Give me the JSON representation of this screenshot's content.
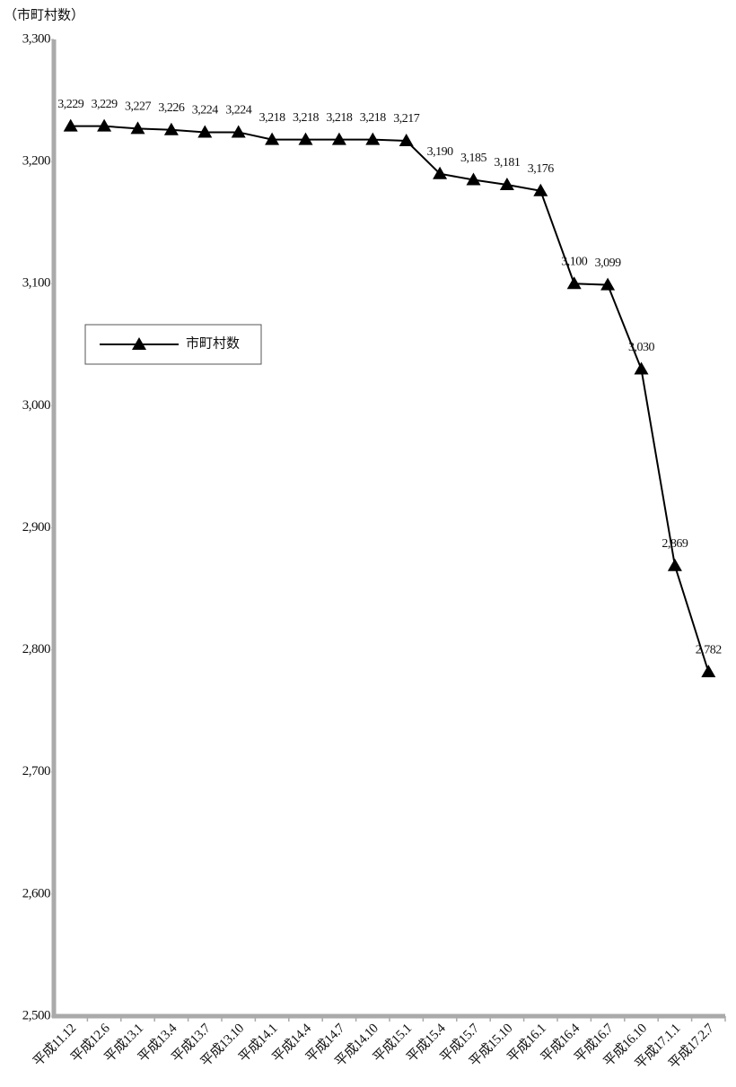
{
  "chart_data": {
    "type": "line",
    "y_label": "（市町村数）",
    "categories": [
      "平成11.12",
      "平成12.6",
      "平成13.1",
      "平成13.4",
      "平成13.7",
      "平成13.10",
      "平成14.1",
      "平成14.4",
      "平成14.7",
      "平成14.10",
      "平成15.1",
      "平成15.4",
      "平成15.7",
      "平成15.10",
      "平成16.1",
      "平成16.4",
      "平成16.7",
      "平成16.10",
      "平成17.1.1",
      "平成17.2.7"
    ],
    "series": [
      {
        "name": "市町村数",
        "color": "#000000",
        "values": [
          3229,
          3229,
          3227,
          3226,
          3224,
          3224,
          3218,
          3218,
          3218,
          3218,
          3217,
          3190,
          3185,
          3181,
          3176,
          3100,
          3099,
          3030,
          2869,
          2782
        ],
        "value_labels": [
          "3,229",
          "3,229",
          "3,227",
          "3,226",
          "3,224",
          "3,224",
          "3,218",
          "3,218",
          "3,218",
          "3,218",
          "3,217",
          "3,190",
          "3,185",
          "3,181",
          "3,176",
          "3,100",
          "3,099",
          "3,030",
          "2,869",
          "2,782"
        ]
      }
    ],
    "ylim": [
      2500,
      3300
    ],
    "yticks": [
      {
        "value": 2500,
        "label": "2,500"
      },
      {
        "value": 2600,
        "label": "2,600"
      },
      {
        "value": 2700,
        "label": "2,700"
      },
      {
        "value": 2800,
        "label": "2,800"
      },
      {
        "value": 2900,
        "label": "2,900"
      },
      {
        "value": 3000,
        "label": "3,000"
      },
      {
        "value": 3100,
        "label": "3,100"
      },
      {
        "value": 3200,
        "label": "3,200"
      },
      {
        "value": 3300,
        "label": "3,300"
      }
    ],
    "legend": "upper-left"
  }
}
